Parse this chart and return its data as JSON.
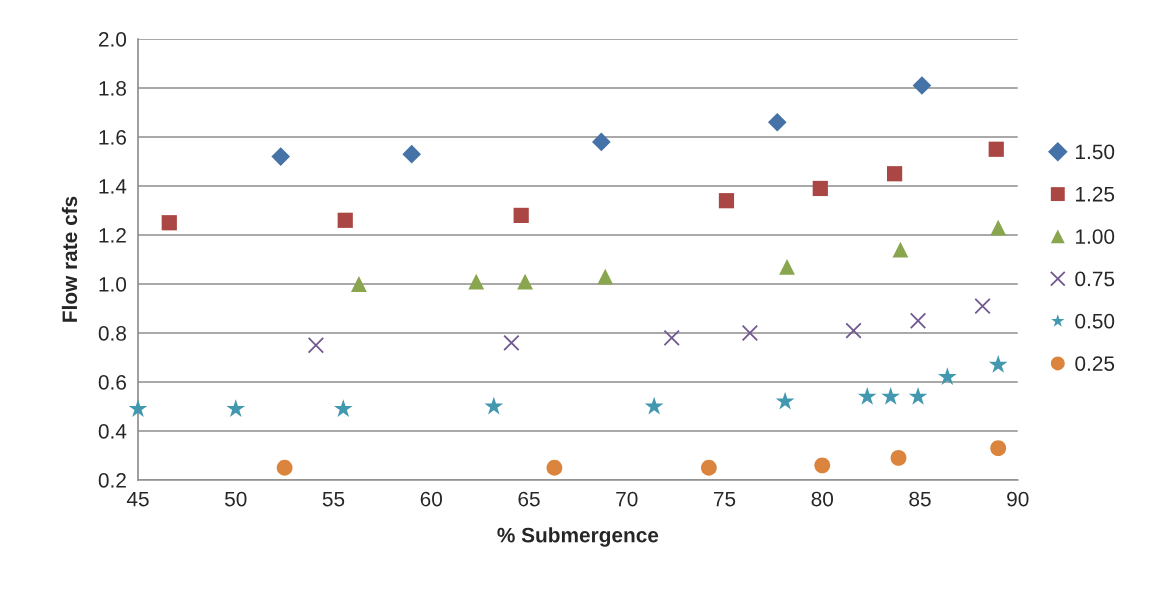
{
  "chart_data": {
    "type": "scatter",
    "xlabel": "% Submergence",
    "ylabel": "Flow rate cfs",
    "xlim": [
      45,
      90
    ],
    "xticks": [
      45,
      50,
      55,
      60,
      65,
      70,
      75,
      80,
      85,
      90
    ],
    "ylim": [
      0.2,
      2.0
    ],
    "yticks": [
      {
        "value": 0.2,
        "label": "0.2"
      },
      {
        "value": 0.4,
        "label": "0.4"
      },
      {
        "value": 0.6,
        "label": "0.6"
      },
      {
        "value": 0.8,
        "label": "0.8"
      },
      {
        "value": 1.0,
        "label": "1.0"
      },
      {
        "value": 1.2,
        "label": "1.2"
      },
      {
        "value": 1.4,
        "label": "1.4"
      },
      {
        "value": 1.6,
        "label": "1.6"
      },
      {
        "value": 1.8,
        "label": "1.8"
      },
      {
        "value": 2.0,
        "label": "2.0"
      }
    ],
    "grid": "y",
    "legend": "right",
    "series": [
      {
        "name": "1.50",
        "color": "#4572a7",
        "marker": "diamond",
        "x": [
          52.3,
          59.0,
          68.7,
          77.7,
          85.1
        ],
        "values": [
          1.52,
          1.53,
          1.58,
          1.66,
          1.81
        ]
      },
      {
        "name": "1.25",
        "color": "#aa4643",
        "marker": "square",
        "x": [
          46.6,
          55.6,
          64.6,
          75.1,
          79.9,
          83.7,
          88.9
        ],
        "values": [
          1.25,
          1.26,
          1.28,
          1.34,
          1.39,
          1.45,
          1.55
        ]
      },
      {
        "name": "1.00",
        "color": "#89a54e",
        "marker": "triangle",
        "x": [
          56.3,
          62.3,
          64.8,
          68.9,
          78.2,
          84.0,
          89.0
        ],
        "values": [
          1.0,
          1.01,
          1.01,
          1.03,
          1.07,
          1.14,
          1.23
        ]
      },
      {
        "name": "0.75",
        "color": "#71588f",
        "marker": "cross",
        "x": [
          54.1,
          64.1,
          72.3,
          76.3,
          81.6,
          84.9,
          88.2
        ],
        "values": [
          0.75,
          0.76,
          0.78,
          0.8,
          0.81,
          0.85,
          0.91
        ]
      },
      {
        "name": "0.50",
        "color": "#4198af",
        "marker": "star",
        "x": [
          45.0,
          50.0,
          55.5,
          63.2,
          71.4,
          78.1,
          82.3,
          83.5,
          84.9,
          86.4,
          89.0
        ],
        "values": [
          0.49,
          0.49,
          0.49,
          0.5,
          0.5,
          0.52,
          0.54,
          0.54,
          0.54,
          0.62,
          0.67
        ]
      },
      {
        "name": "0.25",
        "color": "#db843d",
        "marker": "circle",
        "x": [
          52.5,
          66.3,
          74.2,
          80.0,
          83.9,
          89.0
        ],
        "values": [
          0.25,
          0.25,
          0.25,
          0.26,
          0.29,
          0.33
        ]
      }
    ]
  }
}
